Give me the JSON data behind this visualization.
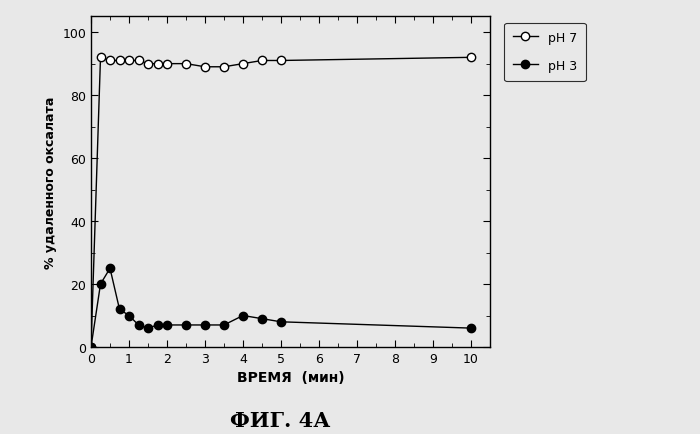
{
  "ph7_x": [
    0,
    0.25,
    0.5,
    0.75,
    1.0,
    1.25,
    1.5,
    1.75,
    2.0,
    2.5,
    3.0,
    3.5,
    4.0,
    4.5,
    5.0,
    10.0
  ],
  "ph7_y": [
    0,
    92,
    91,
    91,
    91,
    91,
    90,
    90,
    90,
    90,
    89,
    89,
    90,
    91,
    91,
    92
  ],
  "ph3_x": [
    0,
    0.25,
    0.5,
    0.75,
    1.0,
    1.25,
    1.5,
    1.75,
    2.0,
    2.5,
    3.0,
    3.5,
    4.0,
    4.5,
    5.0,
    10.0
  ],
  "ph3_y": [
    0,
    20,
    25,
    12,
    10,
    7,
    6,
    7,
    7,
    7,
    7,
    7,
    10,
    9,
    8,
    6
  ],
  "xlabel": "ВРЕМЯ  (мин)",
  "ylabel": "% удаленного оксалата",
  "title": "ФИГ. 4А",
  "legend_ph7": "pH 7",
  "legend_ph3": "pH 3",
  "xlim": [
    0,
    10.5
  ],
  "ylim": [
    0,
    105
  ],
  "xticks": [
    0,
    1,
    2,
    3,
    4,
    5,
    6,
    7,
    8,
    9,
    10
  ],
  "yticks": [
    0,
    20,
    40,
    60,
    80,
    100
  ],
  "ph7_color": "black",
  "ph3_color": "black",
  "background_color": "#e8e8e8",
  "fig_width": 7.0,
  "fig_height": 4.35,
  "dpi": 100
}
